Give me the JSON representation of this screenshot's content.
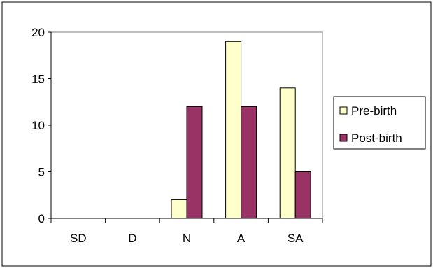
{
  "chart_data": {
    "type": "bar",
    "title": "",
    "xlabel": "",
    "ylabel": "",
    "categories": [
      "SD",
      "D",
      "N",
      "A",
      "SA"
    ],
    "series": [
      {
        "name": "Pre-birth",
        "values": [
          0,
          0,
          2,
          19,
          14
        ],
        "color": "#FFFFCC"
      },
      {
        "name": "Post-birth",
        "values": [
          0,
          0,
          12,
          12,
          5
        ],
        "color": "#993366"
      }
    ],
    "ylim": [
      0,
      20
    ],
    "yticks": [
      0,
      5,
      10,
      15,
      20
    ],
    "grid": false,
    "legend_position": "right"
  }
}
